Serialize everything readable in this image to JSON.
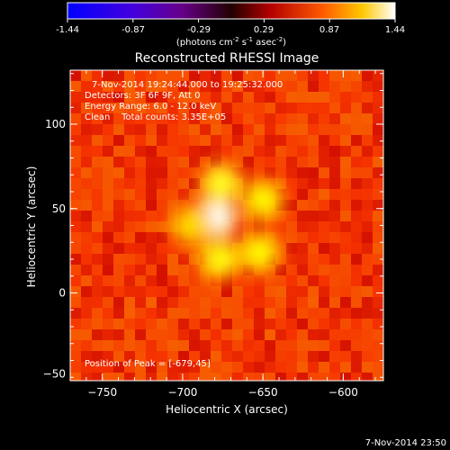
{
  "colorbar": {
    "min_label": "-1.44",
    "ticks": [
      "-0.87",
      "-0.29",
      "0.29",
      "0.87"
    ],
    "max_label": "1.44",
    "units_prefix": "(photons cm",
    "exp1": "-2",
    "mid": " s",
    "exp2": "-1",
    "mid2": " asec",
    "exp3": "-2",
    "suffix": ")"
  },
  "chart_data": {
    "type": "heatmap",
    "title": "Reconstructed RHESSI Image",
    "xlabel": "Heliocentric X (arcsec)",
    "ylabel": "Heliocentric Y (arcsec)",
    "xlim": [
      -770,
      -575
    ],
    "ylim": [
      -52,
      132
    ],
    "xticks": [
      -750,
      -700,
      -650,
      -600
    ],
    "yticks": [
      0,
      50,
      100
    ],
    "vmin": -1.44,
    "vmax": 1.44,
    "colormap": "hot",
    "blobs": [
      {
        "x": -679,
        "y": 45,
        "peak": 1.44
      },
      {
        "x": -676,
        "y": 65,
        "peak": 0.95
      },
      {
        "x": -677,
        "y": 20,
        "peak": 0.9
      },
      {
        "x": -650,
        "y": 55,
        "peak": 0.85
      },
      {
        "x": -652,
        "y": 24,
        "peak": 0.85
      },
      {
        "x": -695,
        "y": 40,
        "peak": 0.7
      }
    ],
    "peak_position": [
      -679,
      45
    ],
    "annotations": {
      "time_range": "7-Nov-2014 19:24:44.000 to 19:25:32.000",
      "detectors": "Detectors: 3F 6F 9F, Att 0",
      "energy": "Energy Range: 6.0 - 12.0 keV",
      "algorithm": "Clean    Total counts: 3.35E+05",
      "peak": "Position of Peak = [-679,45]"
    }
  },
  "footer": {
    "timestamp": "7-Nov-2014 23:50"
  }
}
